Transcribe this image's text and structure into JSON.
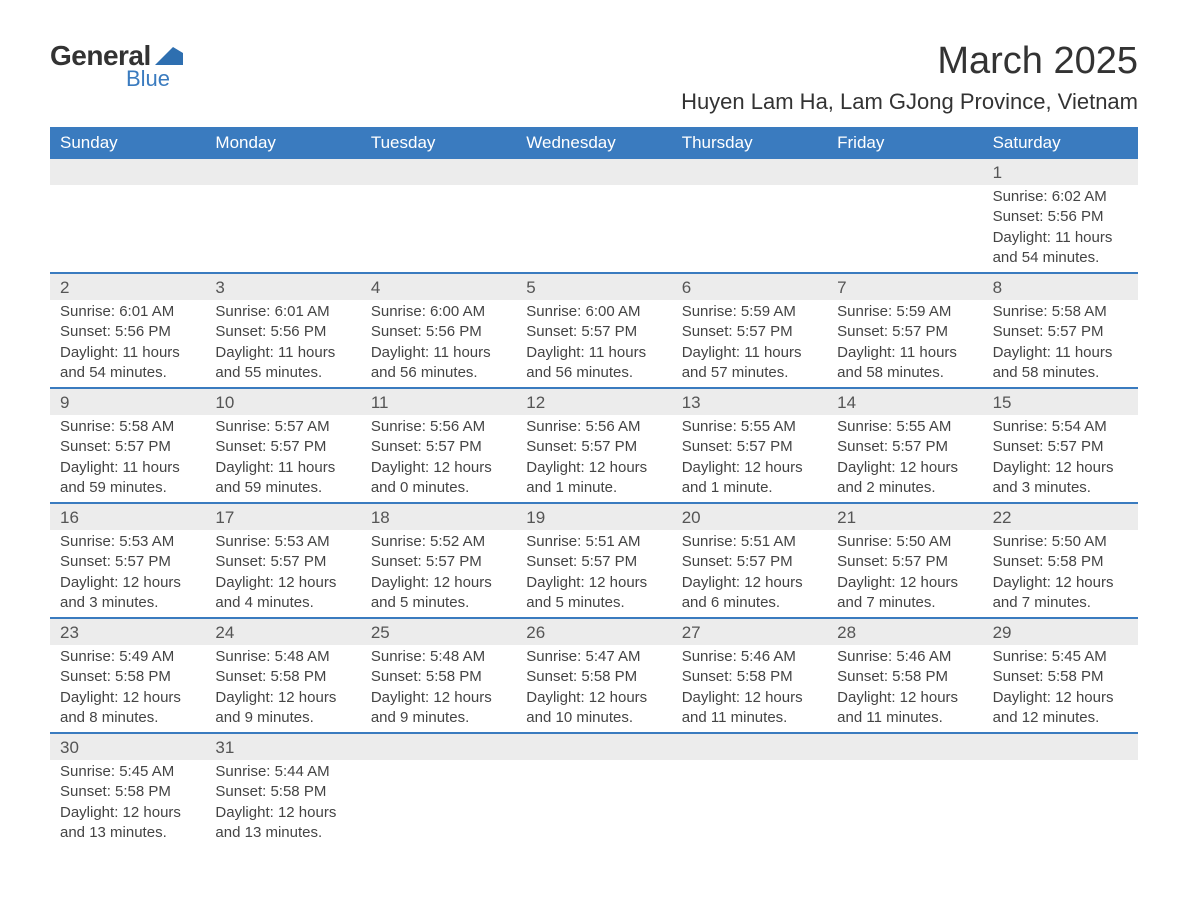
{
  "logo": {
    "text_general": "General",
    "text_blue": "Blue",
    "shape_color": "#2e6fb0"
  },
  "title": "March 2025",
  "location": "Huyen Lam Ha, Lam GJong Province, Vietnam",
  "colors": {
    "header_bg": "#3a7bbf",
    "header_text": "#ffffff",
    "daynum_bg": "#ececec",
    "border": "#3a7bbf",
    "body_text": "#444444",
    "page_bg": "#ffffff"
  },
  "weekdays": [
    "Sunday",
    "Monday",
    "Tuesday",
    "Wednesday",
    "Thursday",
    "Friday",
    "Saturday"
  ],
  "weeks": [
    [
      {
        "num": "",
        "sunrise": "",
        "sunset": "",
        "daylight": ""
      },
      {
        "num": "",
        "sunrise": "",
        "sunset": "",
        "daylight": ""
      },
      {
        "num": "",
        "sunrise": "",
        "sunset": "",
        "daylight": ""
      },
      {
        "num": "",
        "sunrise": "",
        "sunset": "",
        "daylight": ""
      },
      {
        "num": "",
        "sunrise": "",
        "sunset": "",
        "daylight": ""
      },
      {
        "num": "",
        "sunrise": "",
        "sunset": "",
        "daylight": ""
      },
      {
        "num": "1",
        "sunrise": "Sunrise: 6:02 AM",
        "sunset": "Sunset: 5:56 PM",
        "daylight": "Daylight: 11 hours and 54 minutes."
      }
    ],
    [
      {
        "num": "2",
        "sunrise": "Sunrise: 6:01 AM",
        "sunset": "Sunset: 5:56 PM",
        "daylight": "Daylight: 11 hours and 54 minutes."
      },
      {
        "num": "3",
        "sunrise": "Sunrise: 6:01 AM",
        "sunset": "Sunset: 5:56 PM",
        "daylight": "Daylight: 11 hours and 55 minutes."
      },
      {
        "num": "4",
        "sunrise": "Sunrise: 6:00 AM",
        "sunset": "Sunset: 5:56 PM",
        "daylight": "Daylight: 11 hours and 56 minutes."
      },
      {
        "num": "5",
        "sunrise": "Sunrise: 6:00 AM",
        "sunset": "Sunset: 5:57 PM",
        "daylight": "Daylight: 11 hours and 56 minutes."
      },
      {
        "num": "6",
        "sunrise": "Sunrise: 5:59 AM",
        "sunset": "Sunset: 5:57 PM",
        "daylight": "Daylight: 11 hours and 57 minutes."
      },
      {
        "num": "7",
        "sunrise": "Sunrise: 5:59 AM",
        "sunset": "Sunset: 5:57 PM",
        "daylight": "Daylight: 11 hours and 58 minutes."
      },
      {
        "num": "8",
        "sunrise": "Sunrise: 5:58 AM",
        "sunset": "Sunset: 5:57 PM",
        "daylight": "Daylight: 11 hours and 58 minutes."
      }
    ],
    [
      {
        "num": "9",
        "sunrise": "Sunrise: 5:58 AM",
        "sunset": "Sunset: 5:57 PM",
        "daylight": "Daylight: 11 hours and 59 minutes."
      },
      {
        "num": "10",
        "sunrise": "Sunrise: 5:57 AM",
        "sunset": "Sunset: 5:57 PM",
        "daylight": "Daylight: 11 hours and 59 minutes."
      },
      {
        "num": "11",
        "sunrise": "Sunrise: 5:56 AM",
        "sunset": "Sunset: 5:57 PM",
        "daylight": "Daylight: 12 hours and 0 minutes."
      },
      {
        "num": "12",
        "sunrise": "Sunrise: 5:56 AM",
        "sunset": "Sunset: 5:57 PM",
        "daylight": "Daylight: 12 hours and 1 minute."
      },
      {
        "num": "13",
        "sunrise": "Sunrise: 5:55 AM",
        "sunset": "Sunset: 5:57 PM",
        "daylight": "Daylight: 12 hours and 1 minute."
      },
      {
        "num": "14",
        "sunrise": "Sunrise: 5:55 AM",
        "sunset": "Sunset: 5:57 PM",
        "daylight": "Daylight: 12 hours and 2 minutes."
      },
      {
        "num": "15",
        "sunrise": "Sunrise: 5:54 AM",
        "sunset": "Sunset: 5:57 PM",
        "daylight": "Daylight: 12 hours and 3 minutes."
      }
    ],
    [
      {
        "num": "16",
        "sunrise": "Sunrise: 5:53 AM",
        "sunset": "Sunset: 5:57 PM",
        "daylight": "Daylight: 12 hours and 3 minutes."
      },
      {
        "num": "17",
        "sunrise": "Sunrise: 5:53 AM",
        "sunset": "Sunset: 5:57 PM",
        "daylight": "Daylight: 12 hours and 4 minutes."
      },
      {
        "num": "18",
        "sunrise": "Sunrise: 5:52 AM",
        "sunset": "Sunset: 5:57 PM",
        "daylight": "Daylight: 12 hours and 5 minutes."
      },
      {
        "num": "19",
        "sunrise": "Sunrise: 5:51 AM",
        "sunset": "Sunset: 5:57 PM",
        "daylight": "Daylight: 12 hours and 5 minutes."
      },
      {
        "num": "20",
        "sunrise": "Sunrise: 5:51 AM",
        "sunset": "Sunset: 5:57 PM",
        "daylight": "Daylight: 12 hours and 6 minutes."
      },
      {
        "num": "21",
        "sunrise": "Sunrise: 5:50 AM",
        "sunset": "Sunset: 5:57 PM",
        "daylight": "Daylight: 12 hours and 7 minutes."
      },
      {
        "num": "22",
        "sunrise": "Sunrise: 5:50 AM",
        "sunset": "Sunset: 5:58 PM",
        "daylight": "Daylight: 12 hours and 7 minutes."
      }
    ],
    [
      {
        "num": "23",
        "sunrise": "Sunrise: 5:49 AM",
        "sunset": "Sunset: 5:58 PM",
        "daylight": "Daylight: 12 hours and 8 minutes."
      },
      {
        "num": "24",
        "sunrise": "Sunrise: 5:48 AM",
        "sunset": "Sunset: 5:58 PM",
        "daylight": "Daylight: 12 hours and 9 minutes."
      },
      {
        "num": "25",
        "sunrise": "Sunrise: 5:48 AM",
        "sunset": "Sunset: 5:58 PM",
        "daylight": "Daylight: 12 hours and 9 minutes."
      },
      {
        "num": "26",
        "sunrise": "Sunrise: 5:47 AM",
        "sunset": "Sunset: 5:58 PM",
        "daylight": "Daylight: 12 hours and 10 minutes."
      },
      {
        "num": "27",
        "sunrise": "Sunrise: 5:46 AM",
        "sunset": "Sunset: 5:58 PM",
        "daylight": "Daylight: 12 hours and 11 minutes."
      },
      {
        "num": "28",
        "sunrise": "Sunrise: 5:46 AM",
        "sunset": "Sunset: 5:58 PM",
        "daylight": "Daylight: 12 hours and 11 minutes."
      },
      {
        "num": "29",
        "sunrise": "Sunrise: 5:45 AM",
        "sunset": "Sunset: 5:58 PM",
        "daylight": "Daylight: 12 hours and 12 minutes."
      }
    ],
    [
      {
        "num": "30",
        "sunrise": "Sunrise: 5:45 AM",
        "sunset": "Sunset: 5:58 PM",
        "daylight": "Daylight: 12 hours and 13 minutes."
      },
      {
        "num": "31",
        "sunrise": "Sunrise: 5:44 AM",
        "sunset": "Sunset: 5:58 PM",
        "daylight": "Daylight: 12 hours and 13 minutes."
      },
      {
        "num": "",
        "sunrise": "",
        "sunset": "",
        "daylight": ""
      },
      {
        "num": "",
        "sunrise": "",
        "sunset": "",
        "daylight": ""
      },
      {
        "num": "",
        "sunrise": "",
        "sunset": "",
        "daylight": ""
      },
      {
        "num": "",
        "sunrise": "",
        "sunset": "",
        "daylight": ""
      },
      {
        "num": "",
        "sunrise": "",
        "sunset": "",
        "daylight": ""
      }
    ]
  ]
}
